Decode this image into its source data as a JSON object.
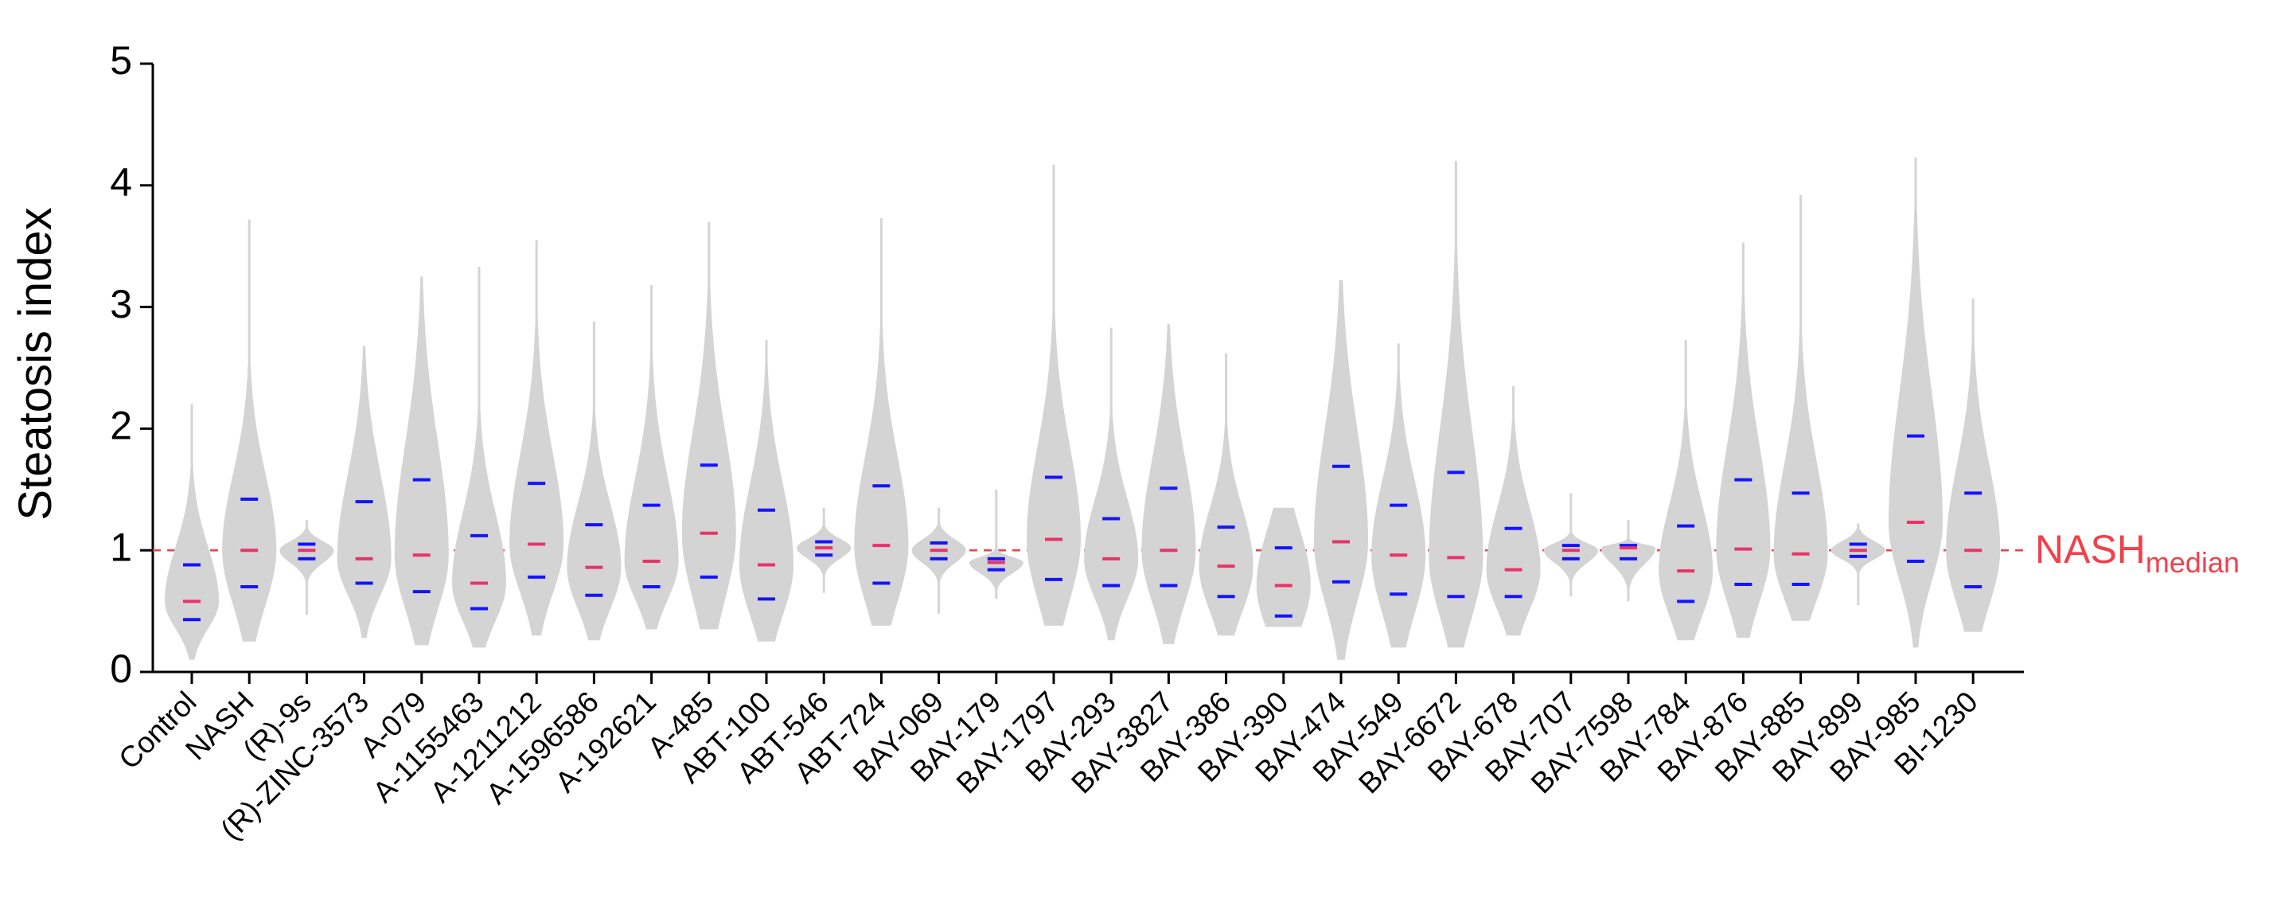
{
  "chart_data": {
    "type": "violin",
    "ylabel": "Steatosis index",
    "categories": [
      "Control",
      "NASH",
      "(R)-9s",
      "(R)-ZINC-3573",
      "A-079",
      "A-1155463",
      "A-1211212",
      "A-1596586",
      "A-192621",
      "A-485",
      "ABT-100",
      "ABT-546",
      "ABT-724",
      "BAY-069",
      "BAY-179",
      "BAY-1797",
      "BAY-293",
      "BAY-3827",
      "BAY-386",
      "BAY-390",
      "BAY-474",
      "BAY-549",
      "BAY-6672",
      "BAY-678",
      "BAY-707",
      "BAY-7598",
      "BAY-784",
      "BAY-876",
      "BAY-885",
      "BAY-899",
      "BAY-985",
      "BI-1230"
    ],
    "min": [
      0.1,
      0.25,
      0.47,
      0.28,
      0.22,
      0.2,
      0.3,
      0.26,
      0.35,
      0.35,
      0.25,
      0.65,
      0.38,
      0.48,
      0.6,
      0.38,
      0.26,
      0.23,
      0.3,
      0.37,
      0.1,
      0.2,
      0.2,
      0.3,
      0.62,
      0.58,
      0.26,
      0.28,
      0.42,
      0.55,
      0.2,
      0.33
    ],
    "q1": [
      0.43,
      0.7,
      0.93,
      0.73,
      0.66,
      0.52,
      0.78,
      0.63,
      0.7,
      0.78,
      0.6,
      0.96,
      0.73,
      0.93,
      0.84,
      0.76,
      0.71,
      0.71,
      0.62,
      0.46,
      0.74,
      0.64,
      0.62,
      0.62,
      0.93,
      0.93,
      0.58,
      0.72,
      0.72,
      0.95,
      0.91,
      0.7
    ],
    "median": [
      0.58,
      1.0,
      1.0,
      0.93,
      0.96,
      0.73,
      1.05,
      0.86,
      0.91,
      1.14,
      0.88,
      1.02,
      1.04,
      1.0,
      0.9,
      1.09,
      0.93,
      1.0,
      0.87,
      0.71,
      1.07,
      0.96,
      0.94,
      0.84,
      1.0,
      1.02,
      0.83,
      1.01,
      0.97,
      1.0,
      1.23,
      1.0
    ],
    "q3": [
      0.88,
      1.42,
      1.05,
      1.4,
      1.58,
      1.12,
      1.55,
      1.21,
      1.37,
      1.7,
      1.33,
      1.07,
      1.53,
      1.06,
      0.93,
      1.6,
      1.26,
      1.51,
      1.19,
      1.02,
      1.69,
      1.37,
      1.64,
      1.18,
      1.04,
      1.04,
      1.2,
      1.58,
      1.47,
      1.05,
      1.94,
      1.47
    ],
    "max": [
      2.2,
      3.72,
      1.25,
      2.68,
      3.25,
      3.33,
      3.55,
      2.88,
      3.18,
      3.7,
      2.73,
      1.35,
      3.73,
      1.35,
      1.5,
      4.17,
      2.83,
      2.86,
      2.62,
      1.35,
      3.22,
      2.7,
      4.2,
      2.35,
      1.47,
      1.25,
      2.73,
      3.53,
      3.92,
      1.22,
      4.23,
      3.07
    ],
    "violin_color": "#d4d4d4",
    "median_color": "#e8336b",
    "quartile_color": "#1414ff",
    "ylim": [
      0,
      5
    ],
    "yticks": [
      0,
      1,
      2,
      3,
      4,
      5
    ],
    "reference_line": {
      "value": 1,
      "label": "NASH",
      "label_sub": "median",
      "color": "#f0414b"
    }
  }
}
